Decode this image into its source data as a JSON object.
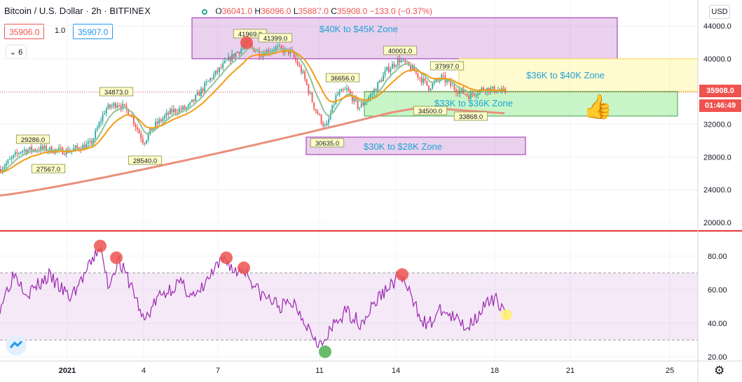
{
  "header": {
    "symbol": "Bitcoin / U.S. Dollar",
    "interval": "2h",
    "exchange": "BITFINEX",
    "sep": "·",
    "open_label": "O",
    "open": "36041.0",
    "high_label": "H",
    "high": "36096.0",
    "low_label": "L",
    "low": "35887.0",
    "close_label": "C",
    "close": "35908.0",
    "change": "−133.0 (−0.37%)"
  },
  "trade": {
    "sell": "35906.0",
    "spread": "1.0",
    "buy": "35907.0"
  },
  "indicators_toggle": {
    "icon": "chevron-down-icon",
    "count": "6"
  },
  "currency_button": "USD",
  "price_tags": {
    "last": "35908.0",
    "countdown": "01:46:49"
  },
  "colors": {
    "up": "#26a69a",
    "down": "#ef5350",
    "ema_fast": "#8fc49a",
    "ema_mid": "#f39c12",
    "ema_slow": "#ea8f7a",
    "rsi": "#9c27b0",
    "accent": "#2196f3"
  },
  "zones": [
    {
      "label": "$40K to $45K Zone",
      "low": 40000,
      "high": 45000
    },
    {
      "label": "$36K to $40K Zone",
      "low": 36000,
      "high": 40000
    },
    {
      "label": "$33K to $36K Zone",
      "low": 33000,
      "high": 36000
    },
    {
      "label": "$30K to $28K Zone",
      "low": 28000,
      "high": 30000
    }
  ],
  "chart_data": {
    "type": "candlestick",
    "x_axis_labels": [
      "2021",
      "4",
      "7",
      "11",
      "14",
      "18",
      "21",
      "25"
    ],
    "price_axis": {
      "ticks": [
        "44000.0",
        "40000.0",
        "36000.0",
        "32000.0",
        "28000.0",
        "24000.0",
        "20000.0"
      ],
      "ylim": [
        19000,
        45500
      ]
    },
    "rsi_axis": {
      "ticks": [
        "80.00",
        "60.00",
        "40.00",
        "20.00"
      ],
      "ylim": [
        18,
        93
      ],
      "band": [
        30,
        70
      ]
    },
    "price_labels": [
      "29286.0",
      "27567.0",
      "34873.0",
      "28540.0",
      "41969.0",
      "41399.0",
      "36656.0",
      "30635.0",
      "40001.0",
      "37997.0",
      "34500.0",
      "33868.0"
    ],
    "rsi_markers": [
      {
        "value": 86,
        "color": "red"
      },
      {
        "value": 79,
        "color": "red"
      },
      {
        "value": 79,
        "color": "red"
      },
      {
        "value": 73,
        "color": "red"
      },
      {
        "value": 69,
        "color": "red"
      },
      {
        "value": 23,
        "color": "green"
      },
      {
        "value": 45,
        "color": "yellow"
      }
    ]
  }
}
